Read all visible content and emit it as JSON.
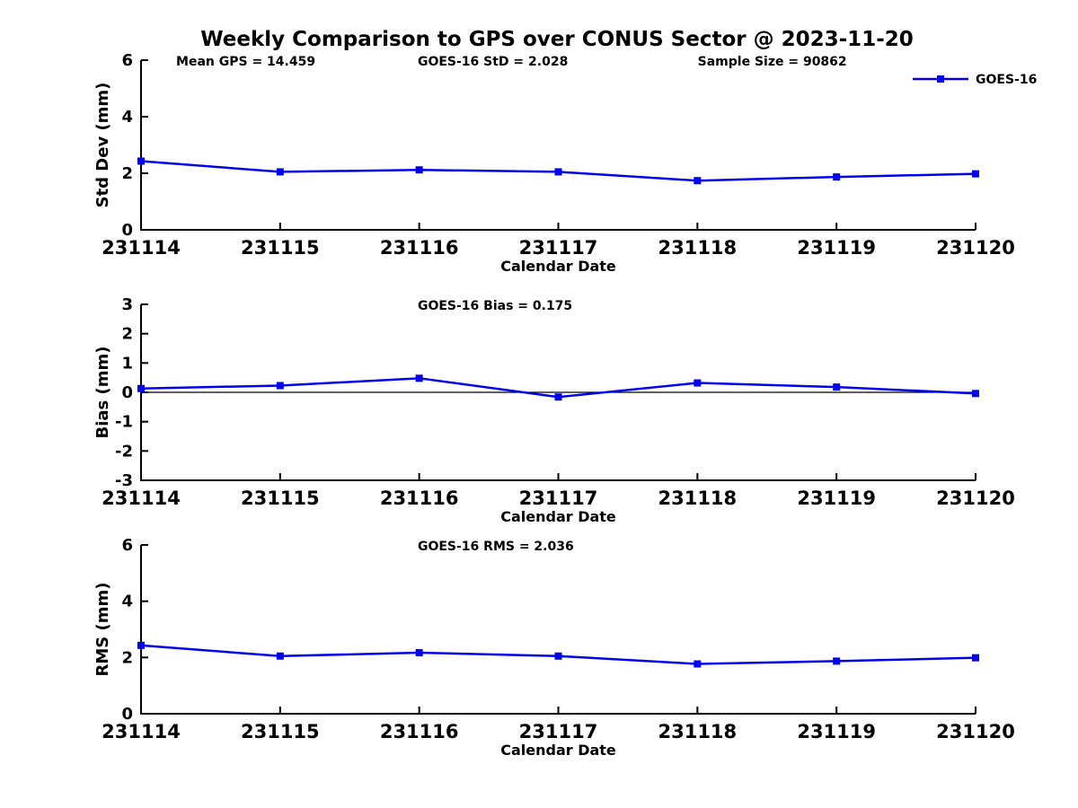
{
  "figure": {
    "title": "Weekly Comparison to GPS over CONUS Sector @ 2023-11-20",
    "series_name": "GOES-16",
    "accent_color": "#0000ee",
    "axis_color": "#000000",
    "xlabel": "Calendar Date",
    "categories": [
      "231114",
      "231115",
      "231116",
      "231117",
      "231118",
      "231119",
      "231120"
    ]
  },
  "chart_data": [
    {
      "id": "stddev",
      "type": "line",
      "title": "",
      "xlabel": "Calendar Date",
      "ylabel": "Std Dev (mm)",
      "x": [
        "231114",
        "231115",
        "231116",
        "231117",
        "231118",
        "231119",
        "231120"
      ],
      "series": [
        {
          "name": "GOES-16",
          "color": "#0000ee",
          "marker": "square",
          "values": [
            2.43,
            2.05,
            2.12,
            2.05,
            1.74,
            1.87,
            1.98
          ]
        }
      ],
      "ylim": [
        0,
        6
      ],
      "yticks": [
        0,
        2,
        4,
        6
      ],
      "grid": false,
      "legend": {
        "label": "GOES-16",
        "position": "top-right"
      },
      "annotations": [
        {
          "text": "Mean GPS = 14.459",
          "xfrac": 0.042
        },
        {
          "text": "GOES-16 StD = 2.028",
          "xfrac": 0.3315
        },
        {
          "text": "Sample Size = 90862",
          "xfrac": 0.667
        }
      ]
    },
    {
      "id": "bias",
      "type": "line",
      "title": "",
      "xlabel": "Calendar Date",
      "ylabel": "Bias (mm)",
      "x": [
        "231114",
        "231115",
        "231116",
        "231117",
        "231118",
        "231119",
        "231120"
      ],
      "series": [
        {
          "name": "GOES-16",
          "color": "#0000ee",
          "marker": "square",
          "values": [
            0.13,
            0.23,
            0.48,
            -0.16,
            0.32,
            0.18,
            -0.04
          ]
        }
      ],
      "ylim": [
        -3,
        3
      ],
      "yticks": [
        -3,
        -2,
        -1,
        0,
        1,
        2,
        3
      ],
      "zero_line": true,
      "grid": false,
      "annotations": [
        {
          "text": "GOES-16 Bias  = 0.175",
          "xfrac": 0.3315
        }
      ]
    },
    {
      "id": "rms",
      "type": "line",
      "title": "",
      "xlabel": "Calendar Date",
      "ylabel": "RMS (mm)",
      "x": [
        "231114",
        "231115",
        "231116",
        "231117",
        "231118",
        "231119",
        "231120"
      ],
      "series": [
        {
          "name": "GOES-16",
          "color": "#0000ee",
          "marker": "square",
          "values": [
            2.43,
            2.05,
            2.17,
            2.05,
            1.77,
            1.87,
            1.99
          ]
        }
      ],
      "ylim": [
        0,
        6
      ],
      "yticks": [
        0,
        2,
        4,
        6
      ],
      "grid": false,
      "annotations": [
        {
          "text": "GOES-16 RMS = 2.036",
          "xfrac": 0.3315
        }
      ]
    }
  ]
}
